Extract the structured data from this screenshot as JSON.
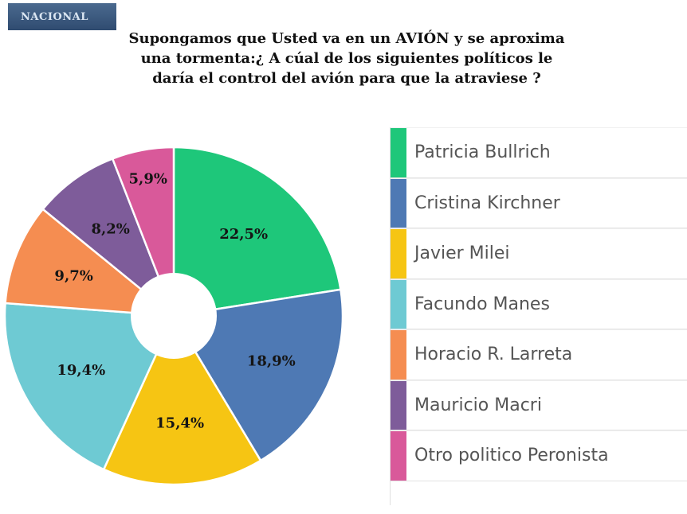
{
  "badge": "NACIONAL",
  "title": {
    "line1": "Supongamos que Usted va en un AVIÓN y se aproxima",
    "line2": "una tormenta:¿ A cúal de los siguientes políticos le",
    "line3": "daría el control del avión para que la atraviese ?"
  },
  "chart_data": {
    "type": "pie",
    "donut": true,
    "legend_position": "right",
    "slices": [
      {
        "label": "Patricia Bullrich",
        "value": 22.5,
        "display": "22,5%",
        "color": "#1ec77a"
      },
      {
        "label": "Cristina Kirchner",
        "value": 18.9,
        "display": "18,9%",
        "color": "#4e79b4"
      },
      {
        "label": "Javier Milei",
        "value": 15.4,
        "display": "15,4%",
        "color": "#f6c513"
      },
      {
        "label": "Facundo Manes",
        "value": 19.4,
        "display": "19,4%",
        "color": "#6ecad3"
      },
      {
        "label": "Horacio R. Larreta",
        "value": 9.7,
        "display": "9,7%",
        "color": "#f58d51"
      },
      {
        "label": "Mauricio Macri",
        "value": 8.2,
        "display": "8,2%",
        "color": "#7e5c9a"
      },
      {
        "label": "Otro politico Peronista",
        "value": 5.9,
        "display": "5,9%",
        "color": "#d9599a"
      }
    ]
  }
}
